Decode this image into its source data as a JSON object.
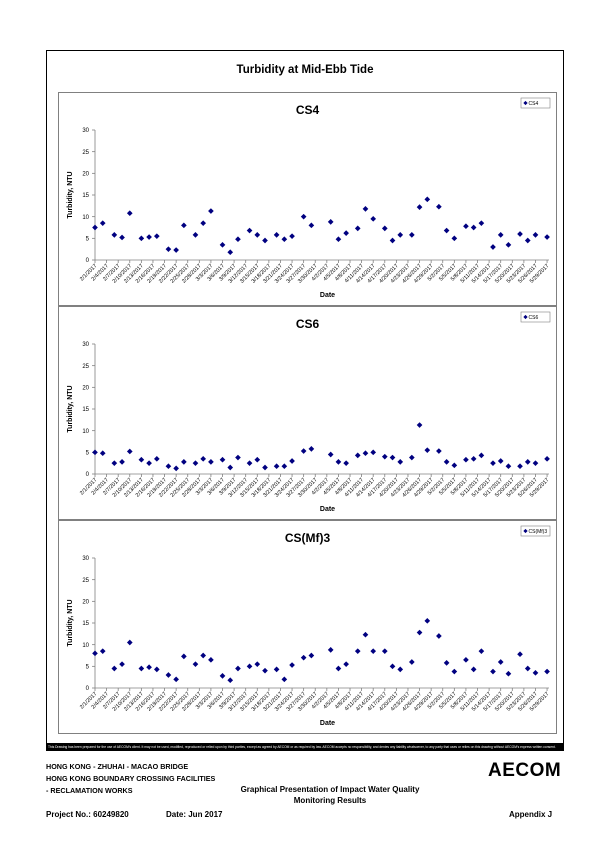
{
  "page": {
    "main_title": "Turbidity at Mid-Ebb Tide",
    "disclaimer": "This Drawing has been prepared for the use of AECOM's client. It may not be used, modified, reproduced or relied upon by third parties, except as agreed by AECOM or as required by law. AECOM accepts no responsibility, and denies any liability whatsoever, to any party that uses or relies on this drawing without AECOM's express written consent.",
    "footer": {
      "line1": "HONG KONG - ZHUHAI - MACAO BRIDGE",
      "line2": "HONG KONG BOUNDARY CROSSING FACILITIES",
      "line3": "- RECLAMATION WORKS",
      "project_no": "Project No.: 60249820",
      "date": "Date: Jun 2017",
      "center_line1": "Graphical Presentation of Impact Water Quality",
      "center_line2": "Monitoring Results",
      "appendix": "Appendix J",
      "logo": "AECOM"
    }
  },
  "chart_data": [
    {
      "type": "scatter",
      "title": "CS4",
      "xlabel": "Date",
      "ylabel": "Turbidity, NTU",
      "ylim": [
        0,
        30
      ],
      "yticks": [
        0,
        5,
        10,
        15,
        20,
        25,
        30
      ],
      "xticks": [
        "2/1/2017",
        "2/4/2017",
        "2/7/2017",
        "2/10/2017",
        "2/13/2017",
        "2/16/2017",
        "2/19/2017",
        "2/22/2017",
        "2/25/2017",
        "2/28/2017",
        "3/3/2017",
        "3/6/2017",
        "3/9/2017",
        "3/12/2017",
        "3/15/2017",
        "3/18/2017",
        "3/21/2017",
        "3/24/2017",
        "3/27/2017",
        "3/30/2017",
        "4/2/2017",
        "4/5/2017",
        "4/8/2017",
        "4/11/2017",
        "4/14/2017",
        "4/17/2017",
        "4/20/2017",
        "4/23/2017",
        "4/26/2017",
        "4/29/2017",
        "5/2/2017",
        "5/5/2017",
        "5/8/2017",
        "5/11/2017",
        "5/14/2017",
        "5/17/2017",
        "5/20/2017",
        "5/23/2017",
        "5/26/2017",
        "5/29/2017"
      ],
      "legend": "top-right",
      "marker_color": "#000080",
      "series": [
        {
          "name": "CS4",
          "points": [
            {
              "x": "2/1/2017",
              "y": 7.5
            },
            {
              "x": "2/3/2017",
              "y": 8.5
            },
            {
              "x": "2/6/2017",
              "y": 5.8
            },
            {
              "x": "2/8/2017",
              "y": 5.2
            },
            {
              "x": "2/10/2017",
              "y": 10.8
            },
            {
              "x": "2/13/2017",
              "y": 5.0
            },
            {
              "x": "2/15/2017",
              "y": 5.3
            },
            {
              "x": "2/17/2017",
              "y": 5.5
            },
            {
              "x": "2/20/2017",
              "y": 2.5
            },
            {
              "x": "2/22/2017",
              "y": 2.3
            },
            {
              "x": "2/24/2017",
              "y": 8.0
            },
            {
              "x": "2/27/2017",
              "y": 5.8
            },
            {
              "x": "3/1/2017",
              "y": 8.5
            },
            {
              "x": "3/3/2017",
              "y": 11.3
            },
            {
              "x": "3/6/2017",
              "y": 3.5
            },
            {
              "x": "3/8/2017",
              "y": 1.8
            },
            {
              "x": "3/10/2017",
              "y": 4.8
            },
            {
              "x": "3/13/2017",
              "y": 6.8
            },
            {
              "x": "3/15/2017",
              "y": 5.8
            },
            {
              "x": "3/17/2017",
              "y": 4.5
            },
            {
              "x": "3/20/2017",
              "y": 5.8
            },
            {
              "x": "3/22/2017",
              "y": 4.8
            },
            {
              "x": "3/24/2017",
              "y": 5.5
            },
            {
              "x": "3/27/2017",
              "y": 10.0
            },
            {
              "x": "3/29/2017",
              "y": 8.0
            },
            {
              "x": "4/3/2017",
              "y": 8.8
            },
            {
              "x": "4/5/2017",
              "y": 4.8
            },
            {
              "x": "4/7/2017",
              "y": 6.2
            },
            {
              "x": "4/10/2017",
              "y": 7.3
            },
            {
              "x": "4/12/2017",
              "y": 11.8
            },
            {
              "x": "4/14/2017",
              "y": 9.5
            },
            {
              "x": "4/17/2017",
              "y": 7.3
            },
            {
              "x": "4/19/2017",
              "y": 4.5
            },
            {
              "x": "4/21/2017",
              "y": 5.8
            },
            {
              "x": "4/24/2017",
              "y": 5.8
            },
            {
              "x": "4/26/2017",
              "y": 12.2
            },
            {
              "x": "4/28/2017",
              "y": 14.0
            },
            {
              "x": "5/1/2017",
              "y": 12.3
            },
            {
              "x": "5/3/2017",
              "y": 6.8
            },
            {
              "x": "5/5/2017",
              "y": 5.0
            },
            {
              "x": "5/8/2017",
              "y": 7.8
            },
            {
              "x": "5/10/2017",
              "y": 7.5
            },
            {
              "x": "5/12/2017",
              "y": 8.5
            },
            {
              "x": "5/15/2017",
              "y": 3.0
            },
            {
              "x": "5/17/2017",
              "y": 5.8
            },
            {
              "x": "5/19/2017",
              "y": 3.5
            },
            {
              "x": "5/22/2017",
              "y": 6.0
            },
            {
              "x": "5/24/2017",
              "y": 4.5
            },
            {
              "x": "5/26/2017",
              "y": 5.8
            },
            {
              "x": "5/29/2017",
              "y": 5.3
            }
          ]
        }
      ]
    },
    {
      "type": "scatter",
      "title": "CS6",
      "xlabel": "Date",
      "ylabel": "Turbidity, NTU",
      "ylim": [
        0,
        30
      ],
      "yticks": [
        0,
        5,
        10,
        15,
        20,
        25,
        30
      ],
      "xticks": [
        "2/1/2017",
        "2/4/2017",
        "2/7/2017",
        "2/10/2017",
        "2/13/2017",
        "2/16/2017",
        "2/19/2017",
        "2/22/2017",
        "2/25/2017",
        "2/28/2017",
        "3/3/2017",
        "3/6/2017",
        "3/9/2017",
        "3/12/2017",
        "3/15/2017",
        "3/18/2017",
        "3/21/2017",
        "3/24/2017",
        "3/27/2017",
        "3/30/2017",
        "4/2/2017",
        "4/5/2017",
        "4/8/2017",
        "4/11/2017",
        "4/14/2017",
        "4/17/2017",
        "4/20/2017",
        "4/23/2017",
        "4/26/2017",
        "4/29/2017",
        "5/2/2017",
        "5/5/2017",
        "5/8/2017",
        "5/11/2017",
        "5/14/2017",
        "5/17/2017",
        "5/20/2017",
        "5/23/2017",
        "5/26/2017",
        "5/29/2017"
      ],
      "legend": "top-right",
      "marker_color": "#000080",
      "series": [
        {
          "name": "CS6",
          "points": [
            {
              "x": "2/1/2017",
              "y": 5.0
            },
            {
              "x": "2/3/2017",
              "y": 4.8
            },
            {
              "x": "2/6/2017",
              "y": 2.5
            },
            {
              "x": "2/8/2017",
              "y": 2.8
            },
            {
              "x": "2/10/2017",
              "y": 5.2
            },
            {
              "x": "2/13/2017",
              "y": 3.3
            },
            {
              "x": "2/15/2017",
              "y": 2.5
            },
            {
              "x": "2/17/2017",
              "y": 3.5
            },
            {
              "x": "2/20/2017",
              "y": 1.8
            },
            {
              "x": "2/22/2017",
              "y": 1.3
            },
            {
              "x": "2/24/2017",
              "y": 2.8
            },
            {
              "x": "2/27/2017",
              "y": 2.5
            },
            {
              "x": "3/1/2017",
              "y": 3.5
            },
            {
              "x": "3/3/2017",
              "y": 2.8
            },
            {
              "x": "3/6/2017",
              "y": 3.3
            },
            {
              "x": "3/8/2017",
              "y": 1.5
            },
            {
              "x": "3/10/2017",
              "y": 3.8
            },
            {
              "x": "3/13/2017",
              "y": 2.5
            },
            {
              "x": "3/15/2017",
              "y": 3.3
            },
            {
              "x": "3/17/2017",
              "y": 1.5
            },
            {
              "x": "3/20/2017",
              "y": 1.8
            },
            {
              "x": "3/22/2017",
              "y": 1.8
            },
            {
              "x": "3/24/2017",
              "y": 3.0
            },
            {
              "x": "3/27/2017",
              "y": 5.3
            },
            {
              "x": "3/29/2017",
              "y": 5.8
            },
            {
              "x": "4/3/2017",
              "y": 4.5
            },
            {
              "x": "4/5/2017",
              "y": 2.8
            },
            {
              "x": "4/7/2017",
              "y": 2.5
            },
            {
              "x": "4/10/2017",
              "y": 4.3
            },
            {
              "x": "4/12/2017",
              "y": 4.8
            },
            {
              "x": "4/14/2017",
              "y": 5.0
            },
            {
              "x": "4/17/2017",
              "y": 4.0
            },
            {
              "x": "4/19/2017",
              "y": 3.8
            },
            {
              "x": "4/21/2017",
              "y": 2.8
            },
            {
              "x": "4/24/2017",
              "y": 3.8
            },
            {
              "x": "4/26/2017",
              "y": 11.3
            },
            {
              "x": "4/28/2017",
              "y": 5.5
            },
            {
              "x": "5/1/2017",
              "y": 5.3
            },
            {
              "x": "5/3/2017",
              "y": 2.8
            },
            {
              "x": "5/5/2017",
              "y": 2.0
            },
            {
              "x": "5/8/2017",
              "y": 3.3
            },
            {
              "x": "5/10/2017",
              "y": 3.5
            },
            {
              "x": "5/12/2017",
              "y": 4.3
            },
            {
              "x": "5/15/2017",
              "y": 2.5
            },
            {
              "x": "5/17/2017",
              "y": 3.0
            },
            {
              "x": "5/19/2017",
              "y": 1.8
            },
            {
              "x": "5/22/2017",
              "y": 1.8
            },
            {
              "x": "5/24/2017",
              "y": 2.8
            },
            {
              "x": "5/26/2017",
              "y": 2.5
            },
            {
              "x": "5/29/2017",
              "y": 3.5
            }
          ]
        }
      ]
    },
    {
      "type": "scatter",
      "title": "CS(Mf)3",
      "xlabel": "Date",
      "ylabel": "Turbidity, NTU",
      "ylim": [
        0,
        30
      ],
      "yticks": [
        0,
        5,
        10,
        15,
        20,
        25,
        30
      ],
      "xticks": [
        "2/1/2017",
        "2/4/2017",
        "2/7/2017",
        "2/10/2017",
        "2/13/2017",
        "2/16/2017",
        "2/19/2017",
        "2/22/2017",
        "2/25/2017",
        "2/28/2017",
        "3/3/2017",
        "3/6/2017",
        "3/9/2017",
        "3/12/2017",
        "3/15/2017",
        "3/18/2017",
        "3/21/2017",
        "3/24/2017",
        "3/27/2017",
        "3/30/2017",
        "4/2/2017",
        "4/5/2017",
        "4/8/2017",
        "4/11/2017",
        "4/14/2017",
        "4/17/2017",
        "4/20/2017",
        "4/23/2017",
        "4/26/2017",
        "4/29/2017",
        "5/2/2017",
        "5/5/2017",
        "5/8/2017",
        "5/11/2017",
        "5/14/2017",
        "5/17/2017",
        "5/20/2017",
        "5/23/2017",
        "5/26/2017",
        "5/29/2017"
      ],
      "legend": "top-right",
      "marker_color": "#000080",
      "series": [
        {
          "name": "CS(Mf)3",
          "points": [
            {
              "x": "2/1/2017",
              "y": 8.0
            },
            {
              "x": "2/3/2017",
              "y": 8.5
            },
            {
              "x": "2/6/2017",
              "y": 4.5
            },
            {
              "x": "2/8/2017",
              "y": 5.5
            },
            {
              "x": "2/10/2017",
              "y": 10.5
            },
            {
              "x": "2/13/2017",
              "y": 4.5
            },
            {
              "x": "2/15/2017",
              "y": 4.8
            },
            {
              "x": "2/17/2017",
              "y": 4.3
            },
            {
              "x": "2/20/2017",
              "y": 3.0
            },
            {
              "x": "2/22/2017",
              "y": 2.0
            },
            {
              "x": "2/24/2017",
              "y": 7.3
            },
            {
              "x": "2/27/2017",
              "y": 5.5
            },
            {
              "x": "3/1/2017",
              "y": 7.5
            },
            {
              "x": "3/3/2017",
              "y": 6.5
            },
            {
              "x": "3/6/2017",
              "y": 2.8
            },
            {
              "x": "3/8/2017",
              "y": 1.8
            },
            {
              "x": "3/10/2017",
              "y": 4.5
            },
            {
              "x": "3/13/2017",
              "y": 5.0
            },
            {
              "x": "3/15/2017",
              "y": 5.5
            },
            {
              "x": "3/17/2017",
              "y": 4.0
            },
            {
              "x": "3/20/2017",
              "y": 4.3
            },
            {
              "x": "3/22/2017",
              "y": 2.0
            },
            {
              "x": "3/24/2017",
              "y": 5.3
            },
            {
              "x": "3/27/2017",
              "y": 7.0
            },
            {
              "x": "3/29/2017",
              "y": 7.5
            },
            {
              "x": "4/3/2017",
              "y": 8.8
            },
            {
              "x": "4/5/2017",
              "y": 4.5
            },
            {
              "x": "4/7/2017",
              "y": 5.5
            },
            {
              "x": "4/10/2017",
              "y": 8.5
            },
            {
              "x": "4/12/2017",
              "y": 12.3
            },
            {
              "x": "4/14/2017",
              "y": 8.5
            },
            {
              "x": "4/17/2017",
              "y": 8.5
            },
            {
              "x": "4/19/2017",
              "y": 5.0
            },
            {
              "x": "4/21/2017",
              "y": 4.3
            },
            {
              "x": "4/24/2017",
              "y": 6.0
            },
            {
              "x": "4/26/2017",
              "y": 12.8
            },
            {
              "x": "4/28/2017",
              "y": 15.5
            },
            {
              "x": "5/1/2017",
              "y": 12.0
            },
            {
              "x": "5/3/2017",
              "y": 5.8
            },
            {
              "x": "5/5/2017",
              "y": 3.8
            },
            {
              "x": "5/8/2017",
              "y": 6.5
            },
            {
              "x": "5/10/2017",
              "y": 4.3
            },
            {
              "x": "5/12/2017",
              "y": 8.5
            },
            {
              "x": "5/15/2017",
              "y": 3.8
            },
            {
              "x": "5/17/2017",
              "y": 6.0
            },
            {
              "x": "5/19/2017",
              "y": 3.3
            },
            {
              "x": "5/22/2017",
              "y": 7.8
            },
            {
              "x": "5/24/2017",
              "y": 4.5
            },
            {
              "x": "5/26/2017",
              "y": 3.5
            },
            {
              "x": "5/29/2017",
              "y": 3.8
            }
          ]
        }
      ]
    }
  ]
}
